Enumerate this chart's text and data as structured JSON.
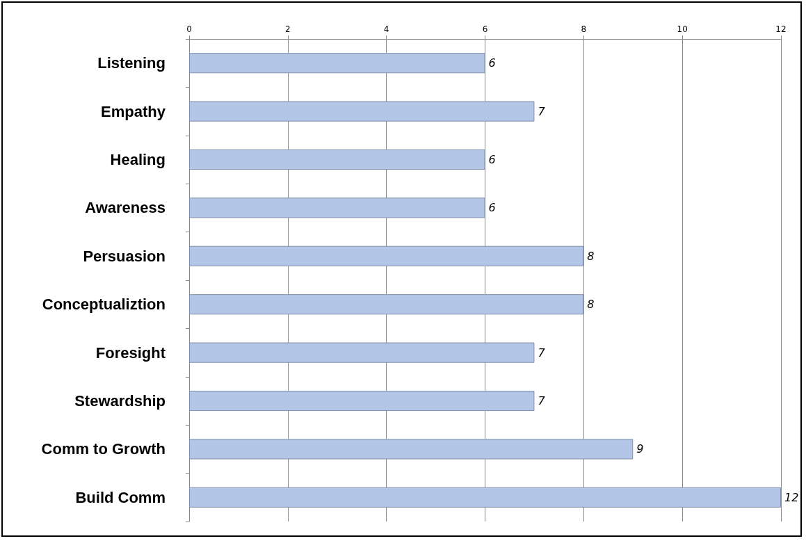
{
  "chart_data": {
    "type": "bar",
    "orientation": "horizontal",
    "categories": [
      "Listening",
      "Empathy",
      "Healing",
      "Awareness",
      "Persuasion",
      "Conceptualiztion",
      "Foresight",
      "Stewardship",
      "Comm to Growth",
      "Build Comm"
    ],
    "values": [
      6,
      7,
      6,
      6,
      8,
      8,
      7,
      7,
      9,
      12
    ],
    "color": "#b4c6e7",
    "xlim": [
      0,
      12
    ],
    "xticks": [
      0,
      2,
      4,
      6,
      8,
      10,
      12
    ],
    "grid": "x",
    "data_labels": true
  }
}
